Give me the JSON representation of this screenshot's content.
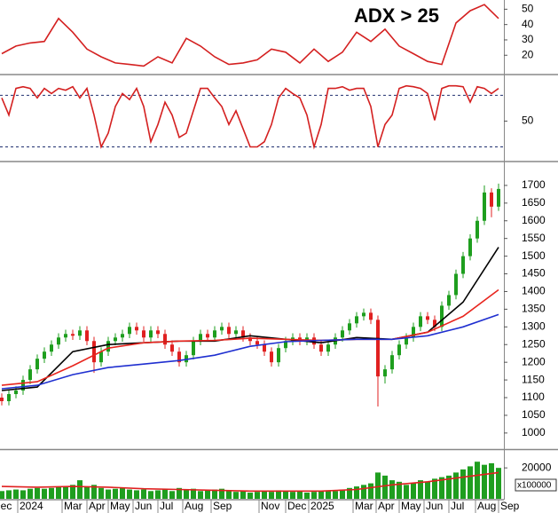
{
  "chart_data": [
    {
      "type": "line",
      "annotation": "ADX > 25",
      "annotation_color": "#1a35e0",
      "xlim": [
        -0.25,
        70.75
      ],
      "ylim": [
        8,
        56
      ],
      "yticks": [
        20,
        30,
        40,
        50
      ],
      "x": [
        0,
        2,
        4,
        6,
        8,
        10,
        12,
        14,
        16,
        18,
        20,
        22,
        24,
        26,
        28,
        30,
        32,
        34,
        36,
        38,
        40,
        42,
        44,
        46,
        48,
        50,
        52,
        54,
        56,
        58,
        60,
        62,
        64,
        66,
        68,
        70
      ],
      "series": [
        {
          "color": "#d42020",
          "values": [
            21,
            26,
            28,
            29,
            44,
            35,
            24,
            19,
            15,
            14,
            13,
            19,
            15,
            31,
            26,
            19,
            14,
            15,
            17,
            24,
            22,
            15,
            24,
            16,
            22,
            35,
            29,
            37,
            26,
            21,
            16,
            14,
            41,
            49,
            53,
            44
          ]
        }
      ]
    },
    {
      "type": "line",
      "xlim": [
        -0.25,
        70.75
      ],
      "ylim": [
        5,
        100
      ],
      "yticks": [
        50
      ],
      "levels": [
        80,
        20
      ],
      "level_color": "#203070",
      "x": [
        0,
        1,
        2,
        3,
        4,
        5,
        6,
        7,
        8,
        9,
        10,
        11,
        12,
        13,
        14,
        15,
        16,
        17,
        18,
        19,
        20,
        21,
        22,
        23,
        24,
        25,
        26,
        27,
        28,
        29,
        30,
        31,
        32,
        33,
        34,
        35,
        36,
        37,
        38,
        39,
        40,
        41,
        42,
        43,
        44,
        45,
        46,
        47,
        48,
        49,
        50,
        51,
        52,
        53,
        54,
        55,
        56,
        57,
        58,
        59,
        60,
        61,
        62,
        63,
        64,
        65,
        66,
        67,
        68,
        69,
        70
      ],
      "series": [
        {
          "color": "#d42020",
          "values": [
            77,
            57,
            88,
            90,
            88,
            77,
            88,
            82,
            88,
            86,
            90,
            77,
            88,
            57,
            20,
            36,
            67,
            82,
            75,
            88,
            67,
            26,
            46,
            72,
            57,
            31,
            36,
            62,
            88,
            88,
            77,
            67,
            46,
            62,
            41,
            20,
            20,
            26,
            46,
            77,
            88,
            82,
            77,
            57,
            20,
            46,
            88,
            88,
            90,
            86,
            88,
            88,
            67,
            20,
            46,
            57,
            88,
            91,
            90,
            88,
            82,
            51,
            88,
            91,
            91,
            90,
            72,
            90,
            88,
            82,
            88
          ]
        }
      ]
    },
    {
      "type": "candlestick",
      "xlim": [
        -0.25,
        70.75
      ],
      "ylim": [
        957,
        1765
      ],
      "yticks": [
        1000,
        1050,
        1100,
        1150,
        1200,
        1250,
        1300,
        1350,
        1400,
        1450,
        1500,
        1550,
        1600,
        1650,
        1700
      ],
      "up_color": "#1e9e1e",
      "down_color": "#e02020",
      "x": [
        0,
        1,
        2,
        3,
        4,
        5,
        6,
        7,
        8,
        9,
        10,
        11,
        12,
        13,
        14,
        15,
        16,
        17,
        18,
        19,
        20,
        21,
        22,
        23,
        24,
        25,
        26,
        27,
        28,
        29,
        30,
        31,
        32,
        33,
        34,
        35,
        36,
        37,
        38,
        39,
        40,
        41,
        42,
        43,
        44,
        45,
        46,
        47,
        48,
        49,
        50,
        51,
        52,
        53,
        54,
        55,
        56,
        57,
        58,
        59,
        60,
        61,
        62,
        63,
        64,
        65,
        66,
        67,
        68,
        69,
        70
      ],
      "open": [
        1100,
        1090,
        1110,
        1120,
        1150,
        1180,
        1210,
        1230,
        1250,
        1270,
        1280,
        1275,
        1290,
        1260,
        1200,
        1230,
        1260,
        1270,
        1280,
        1300,
        1290,
        1270,
        1290,
        1280,
        1250,
        1230,
        1200,
        1220,
        1260,
        1280,
        1270,
        1290,
        1300,
        1280,
        1290,
        1270,
        1260,
        1250,
        1230,
        1200,
        1240,
        1260,
        1270,
        1260,
        1270,
        1250,
        1230,
        1250,
        1270,
        1290,
        1310,
        1330,
        1340,
        1320,
        1160,
        1180,
        1220,
        1250,
        1270,
        1300,
        1330,
        1320,
        1300,
        1360,
        1390,
        1450,
        1500,
        1550,
        1600,
        1680,
        1640
      ],
      "high": [
        1112,
        1122,
        1132,
        1162,
        1192,
        1222,
        1242,
        1262,
        1282,
        1292,
        1292,
        1302,
        1302,
        1272,
        1242,
        1272,
        1282,
        1292,
        1312,
        1312,
        1302,
        1302,
        1302,
        1292,
        1262,
        1242,
        1232,
        1272,
        1292,
        1292,
        1302,
        1312,
        1312,
        1302,
        1302,
        1282,
        1272,
        1262,
        1242,
        1252,
        1272,
        1282,
        1282,
        1282,
        1282,
        1262,
        1262,
        1282,
        1302,
        1322,
        1342,
        1352,
        1352,
        1332,
        1192,
        1232,
        1262,
        1282,
        1312,
        1342,
        1342,
        1332,
        1372,
        1402,
        1462,
        1512,
        1562,
        1612,
        1700,
        1692,
        1705
      ],
      "low": [
        1078,
        1078,
        1098,
        1108,
        1138,
        1168,
        1198,
        1218,
        1238,
        1258,
        1263,
        1263,
        1248,
        1170,
        1188,
        1218,
        1248,
        1258,
        1268,
        1278,
        1258,
        1258,
        1268,
        1238,
        1218,
        1188,
        1188,
        1208,
        1248,
        1258,
        1258,
        1278,
        1268,
        1268,
        1258,
        1248,
        1238,
        1218,
        1188,
        1188,
        1228,
        1248,
        1248,
        1248,
        1238,
        1218,
        1218,
        1238,
        1258,
        1278,
        1298,
        1318,
        1308,
        1075,
        1140,
        1168,
        1208,
        1238,
        1258,
        1288,
        1308,
        1288,
        1288,
        1348,
        1378,
        1438,
        1488,
        1538,
        1588,
        1610,
        1628
      ],
      "close": [
        1090,
        1110,
        1120,
        1150,
        1180,
        1210,
        1230,
        1250,
        1270,
        1280,
        1275,
        1290,
        1260,
        1200,
        1230,
        1260,
        1270,
        1280,
        1300,
        1290,
        1270,
        1290,
        1280,
        1250,
        1230,
        1200,
        1220,
        1260,
        1280,
        1270,
        1290,
        1300,
        1280,
        1290,
        1270,
        1260,
        1250,
        1230,
        1200,
        1240,
        1260,
        1270,
        1260,
        1270,
        1250,
        1230,
        1250,
        1270,
        1290,
        1310,
        1330,
        1340,
        1320,
        1160,
        1180,
        1220,
        1250,
        1270,
        1300,
        1330,
        1320,
        1300,
        1360,
        1390,
        1450,
        1500,
        1550,
        1600,
        1680,
        1640,
        1690
      ],
      "lines": [
        {
          "color": "#000000",
          "x": [
            0,
            5,
            10,
            15,
            20,
            25,
            30,
            35,
            40,
            45,
            50,
            55,
            60,
            65,
            70
          ],
          "values": [
            1120,
            1130,
            1230,
            1250,
            1255,
            1260,
            1260,
            1275,
            1265,
            1255,
            1270,
            1265,
            1285,
            1370,
            1525
          ]
        },
        {
          "color": "#e8251e",
          "x": [
            0,
            5,
            10,
            15,
            20,
            25,
            30,
            35,
            40,
            45,
            50,
            55,
            60,
            65,
            70
          ],
          "values": [
            1135,
            1145,
            1190,
            1240,
            1255,
            1260,
            1262,
            1268,
            1265,
            1262,
            1265,
            1265,
            1285,
            1330,
            1405
          ]
        },
        {
          "color": "#1f2fd0",
          "x": [
            0,
            5,
            10,
            15,
            20,
            25,
            30,
            35,
            40,
            45,
            50,
            55,
            60,
            65,
            70
          ],
          "values": [
            1125,
            1135,
            1165,
            1185,
            1195,
            1205,
            1220,
            1245,
            1258,
            1262,
            1265,
            1265,
            1275,
            1300,
            1335
          ]
        }
      ]
    },
    {
      "type": "bar",
      "xlim": [
        -0.25,
        70.75
      ],
      "ylim": [
        0,
        31000
      ],
      "yticks": [
        20000
      ],
      "unit_label": "x100000",
      "color": "#1f9e1f",
      "x": [
        0,
        1,
        2,
        3,
        4,
        5,
        6,
        7,
        8,
        9,
        10,
        11,
        12,
        13,
        14,
        15,
        16,
        17,
        18,
        19,
        20,
        21,
        22,
        23,
        24,
        25,
        26,
        27,
        28,
        29,
        30,
        31,
        32,
        33,
        34,
        35,
        36,
        37,
        38,
        39,
        40,
        41,
        42,
        43,
        44,
        45,
        46,
        47,
        48,
        49,
        50,
        51,
        52,
        53,
        54,
        55,
        56,
        57,
        58,
        59,
        60,
        61,
        62,
        63,
        64,
        65,
        66,
        67,
        68,
        69,
        70
      ],
      "values": [
        5000,
        5500,
        6000,
        5500,
        6500,
        7000,
        6500,
        7000,
        7500,
        8000,
        9000,
        12000,
        8000,
        9000,
        7000,
        6000,
        6500,
        7000,
        6000,
        5500,
        6000,
        5000,
        5500,
        6000,
        5000,
        7000,
        6000,
        6500,
        5000,
        5500,
        6000,
        6500,
        5000,
        4500,
        5000,
        4000,
        4500,
        5000,
        4500,
        5500,
        5000,
        4500,
        5000,
        4000,
        4500,
        5000,
        5500,
        5000,
        6000,
        7000,
        8000,
        9000,
        10000,
        17000,
        15000,
        12000,
        11000,
        9000,
        10000,
        12000,
        11000,
        13000,
        14000,
        15000,
        17000,
        19000,
        21000,
        24000,
        22000,
        23000,
        20000
      ],
      "lines": [
        {
          "color": "#e02020",
          "x": [
            0,
            5,
            10,
            15,
            20,
            25,
            30,
            35,
            40,
            45,
            50,
            55,
            60,
            65,
            70
          ],
          "values": [
            8000,
            7500,
            8000,
            7500,
            6500,
            6000,
            5500,
            5000,
            5000,
            5000,
            6000,
            9000,
            11000,
            14000,
            17000
          ]
        }
      ],
      "xticks": [
        {
          "value": -1.5,
          "label": "Dec"
        },
        {
          "value": 2.25,
          "label": "2024"
        },
        {
          "value": 8.5,
          "label": "Mar"
        },
        {
          "value": 12,
          "label": "Apr"
        },
        {
          "value": 15,
          "label": "May"
        },
        {
          "value": 18.5,
          "label": "Jun"
        },
        {
          "value": 22,
          "label": "Jul"
        },
        {
          "value": 25.5,
          "label": "Aug"
        },
        {
          "value": 29.5,
          "label": "Sep"
        },
        {
          "value": 36.25,
          "label": "Nov"
        },
        {
          "value": 40,
          "label": "Dec"
        },
        {
          "value": 43.25,
          "label": "2025"
        },
        {
          "value": 49.5,
          "label": "Mar"
        },
        {
          "value": 52.75,
          "label": "Apr"
        },
        {
          "value": 56,
          "label": "May"
        },
        {
          "value": 59.5,
          "label": "Jun"
        },
        {
          "value": 63,
          "label": "Jul"
        },
        {
          "value": 66.75,
          "label": "Aug"
        },
        {
          "value": 70,
          "label": "Sep"
        }
      ]
    }
  ]
}
